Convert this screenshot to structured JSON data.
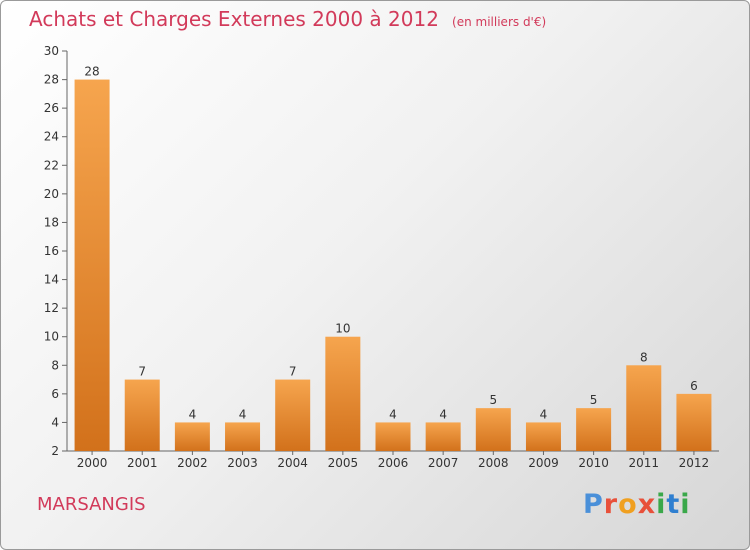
{
  "title": "Achats et Charges Externes 2000 à 2012",
  "subtitle": "(en milliers d'€)",
  "location": "MARSANGIS",
  "logo_text": "Proxiti",
  "colors": {
    "bar_light": "#f6a54e",
    "bar_dark": "#d2711b",
    "title": "#d23a5a"
  },
  "chart_data": {
    "type": "bar",
    "title": "Achats et Charges Externes 2000 à 2012",
    "subtitle": "(en milliers d'€)",
    "categories": [
      "2000",
      "2001",
      "2002",
      "2003",
      "2004",
      "2005",
      "2006",
      "2007",
      "2008",
      "2009",
      "2010",
      "2011",
      "2012"
    ],
    "values": [
      28,
      7,
      4,
      4,
      7,
      10,
      4,
      4,
      5,
      4,
      5,
      8,
      6
    ],
    "xlabel": "",
    "ylabel": "",
    "ylim": [
      2,
      30
    ],
    "yticks": [
      2,
      4,
      6,
      8,
      10,
      12,
      14,
      16,
      18,
      20,
      22,
      24,
      26,
      28,
      30
    ],
    "grid": false,
    "legend": "none"
  }
}
